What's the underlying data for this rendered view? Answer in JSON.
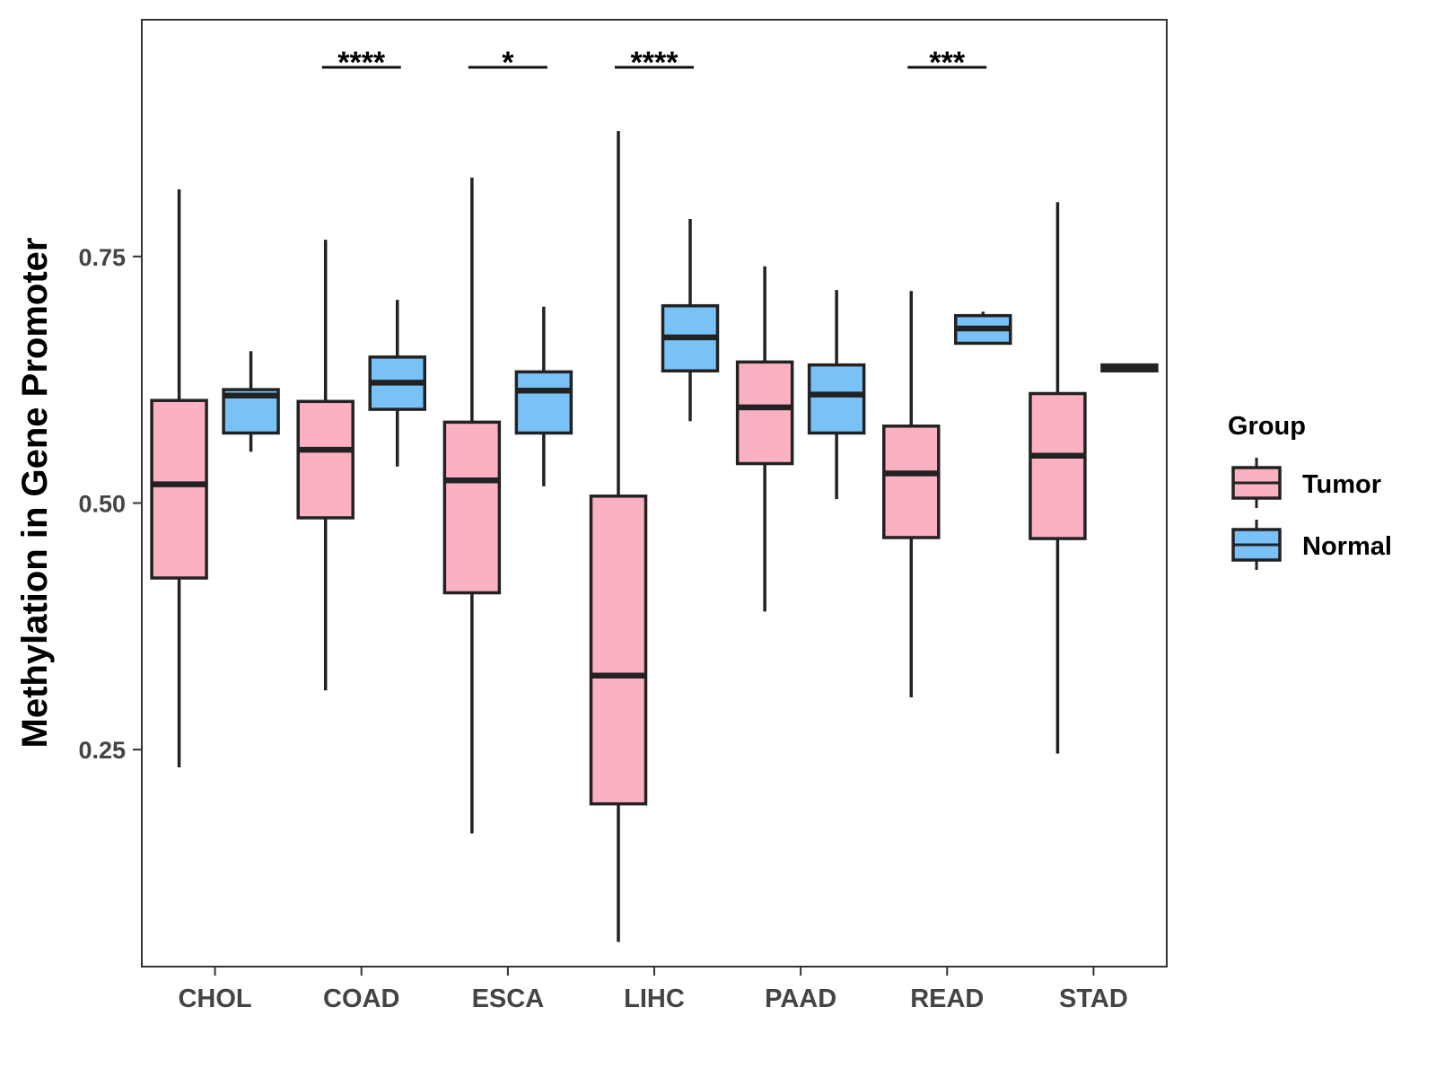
{
  "chart_data": {
    "type": "boxplot",
    "title": "",
    "xlabel": "",
    "ylabel": "Methylation in Gene Promoter",
    "ylim": [
      0.03,
      0.99
    ],
    "yticks": [
      0.25,
      0.5,
      0.75
    ],
    "ytick_labels": [
      "0.25",
      "0.50",
      "0.75"
    ],
    "categories": [
      "CHOL",
      "COAD",
      "ESCA",
      "LIHC",
      "PAAD",
      "READ",
      "STAD"
    ],
    "legend": {
      "title": "Group",
      "position": "right",
      "entries": [
        {
          "name": "Tumor",
          "color": "#FBB1C2"
        },
        {
          "name": "Normal",
          "color": "#79C2F8"
        }
      ]
    },
    "series": [
      {
        "name": "Tumor",
        "color": "#FBB1C2",
        "boxes": [
          {
            "category": "CHOL",
            "whisker_low": 0.232,
            "q1": 0.424,
            "median": 0.519,
            "q3": 0.604,
            "whisker_high": 0.818
          },
          {
            "category": "COAD",
            "whisker_low": 0.31,
            "q1": 0.485,
            "median": 0.554,
            "q3": 0.603,
            "whisker_high": 0.767
          },
          {
            "category": "ESCA",
            "whisker_low": 0.165,
            "q1": 0.409,
            "median": 0.523,
            "q3": 0.582,
            "whisker_high": 0.83
          },
          {
            "category": "LIHC",
            "whisker_low": 0.055,
            "q1": 0.195,
            "median": 0.325,
            "q3": 0.507,
            "whisker_high": 0.877
          },
          {
            "category": "PAAD",
            "whisker_low": 0.39,
            "q1": 0.54,
            "median": 0.597,
            "q3": 0.643,
            "whisker_high": 0.74
          },
          {
            "category": "READ",
            "whisker_low": 0.303,
            "q1": 0.465,
            "median": 0.53,
            "q3": 0.578,
            "whisker_high": 0.715
          },
          {
            "category": "STAD",
            "whisker_low": 0.246,
            "q1": 0.464,
            "median": 0.548,
            "q3": 0.611,
            "whisker_high": 0.805
          }
        ]
      },
      {
        "name": "Normal",
        "color": "#79C2F8",
        "boxes": [
          {
            "category": "CHOL",
            "whisker_low": 0.552,
            "q1": 0.571,
            "median": 0.609,
            "q3": 0.615,
            "whisker_high": 0.654
          },
          {
            "category": "COAD",
            "whisker_low": 0.537,
            "q1": 0.595,
            "median": 0.622,
            "q3": 0.648,
            "whisker_high": 0.706
          },
          {
            "category": "ESCA",
            "whisker_low": 0.517,
            "q1": 0.571,
            "median": 0.614,
            "q3": 0.633,
            "whisker_high": 0.699
          },
          {
            "category": "LIHC",
            "whisker_low": 0.583,
            "q1": 0.634,
            "median": 0.668,
            "q3": 0.7,
            "whisker_high": 0.788
          },
          {
            "category": "PAAD",
            "whisker_low": 0.504,
            "q1": 0.571,
            "median": 0.61,
            "q3": 0.64,
            "whisker_high": 0.716
          },
          {
            "category": "READ",
            "whisker_low": 0.662,
            "q1": 0.662,
            "median": 0.677,
            "q3": 0.69,
            "whisker_high": 0.694
          },
          {
            "category": "STAD",
            "whisker_low": 0.634,
            "q1": 0.634,
            "median": 0.637,
            "q3": 0.64,
            "whisker_high": 0.64
          }
        ]
      }
    ],
    "significance": [
      {
        "category": "COAD",
        "label": "****"
      },
      {
        "category": "ESCA",
        "label": "*"
      },
      {
        "category": "LIHC",
        "label": "****"
      },
      {
        "category": "READ",
        "label": "***"
      }
    ],
    "grid": false
  }
}
